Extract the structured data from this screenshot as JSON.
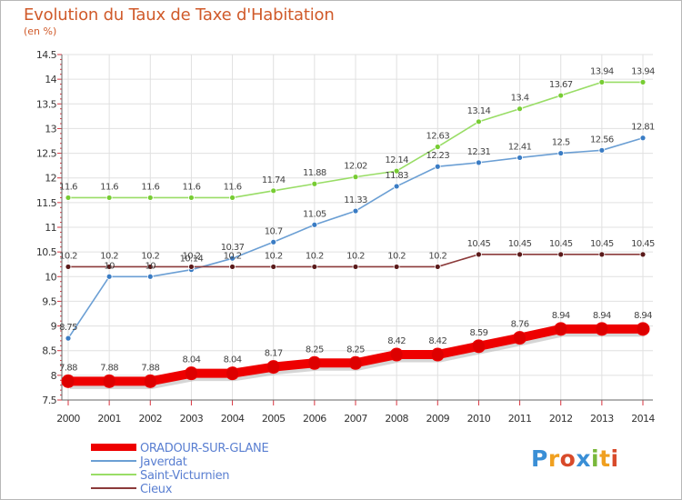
{
  "title": "Evolution du Taux de Taxe d'Habitation",
  "subtitle": "(en %)",
  "logo": {
    "text": "Proxiti",
    "letters": [
      "P",
      "r",
      "o",
      "x",
      "i",
      "t",
      "i"
    ],
    "colors": [
      "#3a8fd6",
      "#f0a020",
      "#d84a2a",
      "#3a8fd6",
      "#79b83a",
      "#f0a020",
      "#d84a2a"
    ]
  },
  "colors": {
    "title": "#d05a2a",
    "axis_tick_marks": "#d9333f",
    "grid": "#e0e0e0",
    "legend_text": "#5a7fd1"
  },
  "chart_data": {
    "type": "line",
    "x": [
      2000,
      2001,
      2002,
      2003,
      2004,
      2005,
      2006,
      2007,
      2008,
      2009,
      2010,
      2011,
      2012,
      2013,
      2014
    ],
    "xlabel": "",
    "ylabel": "(en %)",
    "ylim": [
      7.5,
      14.5
    ],
    "yticks": [
      7.5,
      8,
      8.5,
      9,
      9.5,
      10,
      10.5,
      11,
      11.5,
      12,
      12.5,
      13,
      13.5,
      14,
      14.5
    ],
    "ytick_labels": [
      "7.5",
      "8",
      "8.5",
      "9",
      "9.5",
      "10",
      "10.5",
      "11",
      "11.5",
      "12",
      "12.5",
      "13",
      "13.5",
      "14",
      "14.5"
    ],
    "grid": true,
    "legend_position": "bottom",
    "series": [
      {
        "name": "ORADOUR-SUR-GLANE",
        "color": "#ee0000",
        "marker_color": "#dd0000",
        "width": "thick",
        "values": [
          7.88,
          7.88,
          7.88,
          8.04,
          8.04,
          8.17,
          8.25,
          8.25,
          8.42,
          8.42,
          8.59,
          8.76,
          8.94,
          8.94,
          8.94
        ],
        "labels": [
          "7.88",
          "7.88",
          "7.88",
          "8.04",
          "8.04",
          "8.17",
          "8.25",
          "8.25",
          "8.42",
          "8.42",
          "8.59",
          "8.76",
          "8.94",
          "8.94",
          "8.94"
        ]
      },
      {
        "name": "Javerdat",
        "color": "#6b9fd4",
        "marker_color": "#3a7cc4",
        "width": "thin",
        "values": [
          8.75,
          10,
          10,
          10.14,
          10.37,
          10.7,
          11.05,
          11.33,
          11.83,
          12.23,
          12.31,
          12.41,
          12.5,
          12.56,
          12.81
        ],
        "labels": [
          "8.75",
          "10",
          "10",
          "10.14",
          "10.37",
          "10.7",
          "11.05",
          "11.33",
          "11.83",
          "12.23",
          "12.31",
          "12.41",
          "12.5",
          "12.56",
          "12.81"
        ]
      },
      {
        "name": "Saint-Victurnien",
        "color": "#99dd66",
        "marker_color": "#77cc33",
        "width": "thin",
        "values": [
          11.6,
          11.6,
          11.6,
          11.6,
          11.6,
          11.74,
          11.88,
          12.02,
          12.14,
          12.63,
          13.14,
          13.4,
          13.67,
          13.94,
          13.94
        ],
        "labels": [
          "11.6",
          "11.6",
          "11.6",
          "11.6",
          "11.6",
          "11.74",
          "11.88",
          "12.02",
          "12.14",
          "12.63",
          "13.14",
          "13.4",
          "13.67",
          "13.94",
          "13.94"
        ]
      },
      {
        "name": "Cieux",
        "color": "#8b3a3a",
        "marker_color": "#5a1a1a",
        "width": "thin",
        "values": [
          10.2,
          10.2,
          10.2,
          10.2,
          10.2,
          10.2,
          10.2,
          10.2,
          10.2,
          10.2,
          10.45,
          10.45,
          10.45,
          10.45,
          10.45
        ],
        "labels": [
          "10.2",
          "10.2",
          "10.2",
          "10.2",
          "10.2",
          "10.2",
          "10.2",
          "10.2",
          "10.2",
          "10.2",
          "10.45",
          "10.45",
          "10.45",
          "10.45",
          "10.45"
        ]
      }
    ]
  }
}
